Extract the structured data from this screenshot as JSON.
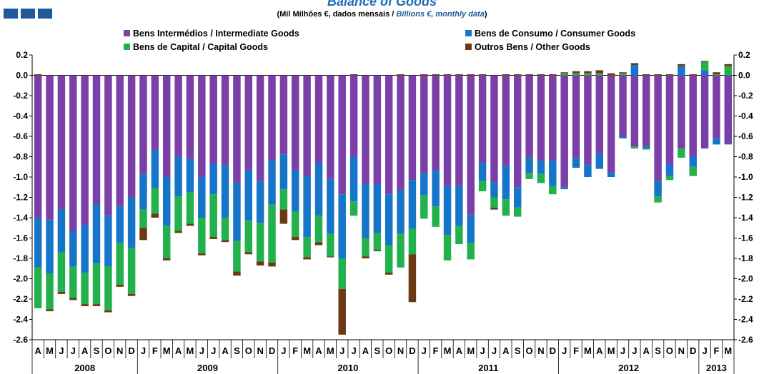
{
  "header": {
    "title": "Balance of Goods",
    "subtitle_pt": "(Mil Milhões €, dados mensais / ",
    "subtitle_en": "Billions €, monthly data",
    "subtitle_end": ")"
  },
  "colors": {
    "intermediate": "#7b3fa8",
    "consumer": "#1675c8",
    "capital": "#22b14c",
    "other": "#6b3a14",
    "logo": "#1e5a9c"
  },
  "chart_data": {
    "type": "bar",
    "stacked": true,
    "ylim": [
      -2.6,
      0.2
    ],
    "yticks": [
      "0.2",
      "0.0",
      "-0.2",
      "-0.4",
      "-0.6",
      "-0.8",
      "-1.0",
      "-1.2",
      "-1.4",
      "-1.6",
      "-1.8",
      "-2.0",
      "-2.2",
      "-2.4",
      "-2.6"
    ],
    "yaxis_both_sides": true,
    "legend_position": "top",
    "month_labels": [
      "A",
      "M",
      "J",
      "J",
      "A",
      "S",
      "O",
      "N",
      "D",
      "J",
      "F",
      "M",
      "A",
      "M",
      "J",
      "J",
      "A",
      "S",
      "O",
      "N",
      "D",
      "J",
      "F",
      "M",
      "A",
      "M",
      "J",
      "J",
      "A",
      "S",
      "O",
      "N",
      "D",
      "J",
      "F",
      "M",
      "A",
      "M",
      "J",
      "J",
      "A",
      "S",
      "O",
      "N",
      "D",
      "J",
      "F",
      "M",
      "A",
      "M",
      "J",
      "J",
      "A",
      "S",
      "O",
      "N",
      "D",
      "J",
      "F",
      "M"
    ],
    "years": [
      {
        "label": "2008",
        "start": 0,
        "end": 8
      },
      {
        "label": "2009",
        "start": 9,
        "end": 20
      },
      {
        "label": "2010",
        "start": 21,
        "end": 32
      },
      {
        "label": "2011",
        "start": 33,
        "end": 44
      },
      {
        "label": "2012",
        "start": 45,
        "end": 56
      },
      {
        "label": "2013",
        "start": 57,
        "end": 59
      }
    ],
    "series": [
      {
        "name": "Bens Intermédios / Intermediate Goods",
        "key": "intermediate",
        "values": [
          -1.4,
          -1.42,
          -1.32,
          -1.53,
          -1.47,
          -1.27,
          -1.38,
          -1.29,
          -1.2,
          -0.97,
          -0.73,
          -1.0,
          -0.8,
          -0.82,
          -1.0,
          -0.87,
          -0.88,
          -1.06,
          -0.93,
          -1.04,
          -0.84,
          -0.78,
          -0.93,
          -0.99,
          -0.86,
          -1.02,
          -1.17,
          -0.8,
          -1.07,
          -1.07,
          -1.17,
          -1.13,
          -1.03,
          -0.96,
          -0.93,
          -1.09,
          -1.09,
          -1.37,
          -0.86,
          -1.05,
          -0.89,
          -1.1,
          -0.81,
          -0.84,
          -0.84,
          -1.1,
          -0.81,
          -0.88,
          -0.77,
          -0.96,
          -0.6,
          -0.7,
          -0.7,
          -1.04,
          -0.87,
          -0.72,
          -0.8,
          -0.72,
          -0.62,
          -0.67
        ]
      },
      {
        "name": "Bens de Consumo / Consumer Goods",
        "key": "consumer",
        "values": [
          -0.49,
          -0.53,
          -0.42,
          -0.35,
          -0.47,
          -0.58,
          -0.5,
          -0.36,
          -0.5,
          -0.35,
          -0.38,
          -0.48,
          -0.39,
          -0.33,
          -0.4,
          -0.3,
          -0.52,
          -0.57,
          -0.5,
          -0.41,
          -0.43,
          -0.34,
          -0.41,
          -0.6,
          -0.52,
          -0.54,
          -0.63,
          -0.44,
          -0.53,
          -0.48,
          -0.5,
          -0.43,
          -0.48,
          -0.22,
          -0.36,
          -0.48,
          -0.39,
          -0.28,
          -0.18,
          -0.15,
          -0.33,
          -0.2,
          -0.15,
          -0.13,
          -0.25,
          -0.02,
          -0.1,
          -0.12,
          -0.15,
          -0.04,
          -0.02,
          0.1,
          -0.02,
          -0.15,
          -0.12,
          0.09,
          -0.1,
          0.05,
          -0.06,
          -0.01
        ]
      },
      {
        "name": "Bens de Capital / Capital Goods",
        "key": "capital",
        "values": [
          -0.4,
          -0.35,
          -0.39,
          -0.31,
          -0.31,
          -0.4,
          -0.43,
          -0.41,
          -0.45,
          -0.18,
          -0.25,
          -0.32,
          -0.34,
          -0.31,
          -0.35,
          -0.42,
          -0.22,
          -0.3,
          -0.31,
          -0.38,
          -0.57,
          -0.2,
          -0.25,
          -0.2,
          -0.26,
          -0.22,
          -0.3,
          -0.14,
          -0.18,
          -0.17,
          -0.27,
          -0.33,
          -0.25,
          -0.23,
          -0.2,
          -0.25,
          -0.18,
          -0.16,
          -0.1,
          -0.1,
          -0.16,
          -0.09,
          -0.06,
          -0.09,
          -0.08,
          0.02,
          0.02,
          0.02,
          0.02,
          0.0,
          0.02,
          -0.02,
          -0.01,
          -0.06,
          -0.04,
          -0.09,
          -0.09,
          0.08,
          0.01,
          0.09
        ]
      },
      {
        "name": "Outros Bens / Other Goods",
        "key": "other",
        "values": [
          0.01,
          -0.02,
          -0.02,
          -0.02,
          -0.02,
          -0.02,
          -0.02,
          -0.02,
          -0.02,
          -0.12,
          -0.04,
          -0.02,
          -0.02,
          -0.02,
          -0.02,
          -0.02,
          -0.02,
          -0.04,
          -0.02,
          -0.04,
          -0.04,
          -0.14,
          -0.03,
          -0.02,
          -0.03,
          -0.01,
          -0.45,
          0.01,
          -0.02,
          -0.01,
          -0.02,
          0.01,
          -0.47,
          0.01,
          0.01,
          0.01,
          0.01,
          0.01,
          0.01,
          -0.02,
          0.01,
          0.01,
          0.01,
          0.01,
          0.01,
          0.01,
          0.02,
          0.02,
          0.03,
          0.02,
          0.01,
          0.02,
          0.01,
          0.01,
          0.01,
          0.02,
          0.01,
          0.01,
          0.02,
          0.02
        ]
      }
    ]
  }
}
